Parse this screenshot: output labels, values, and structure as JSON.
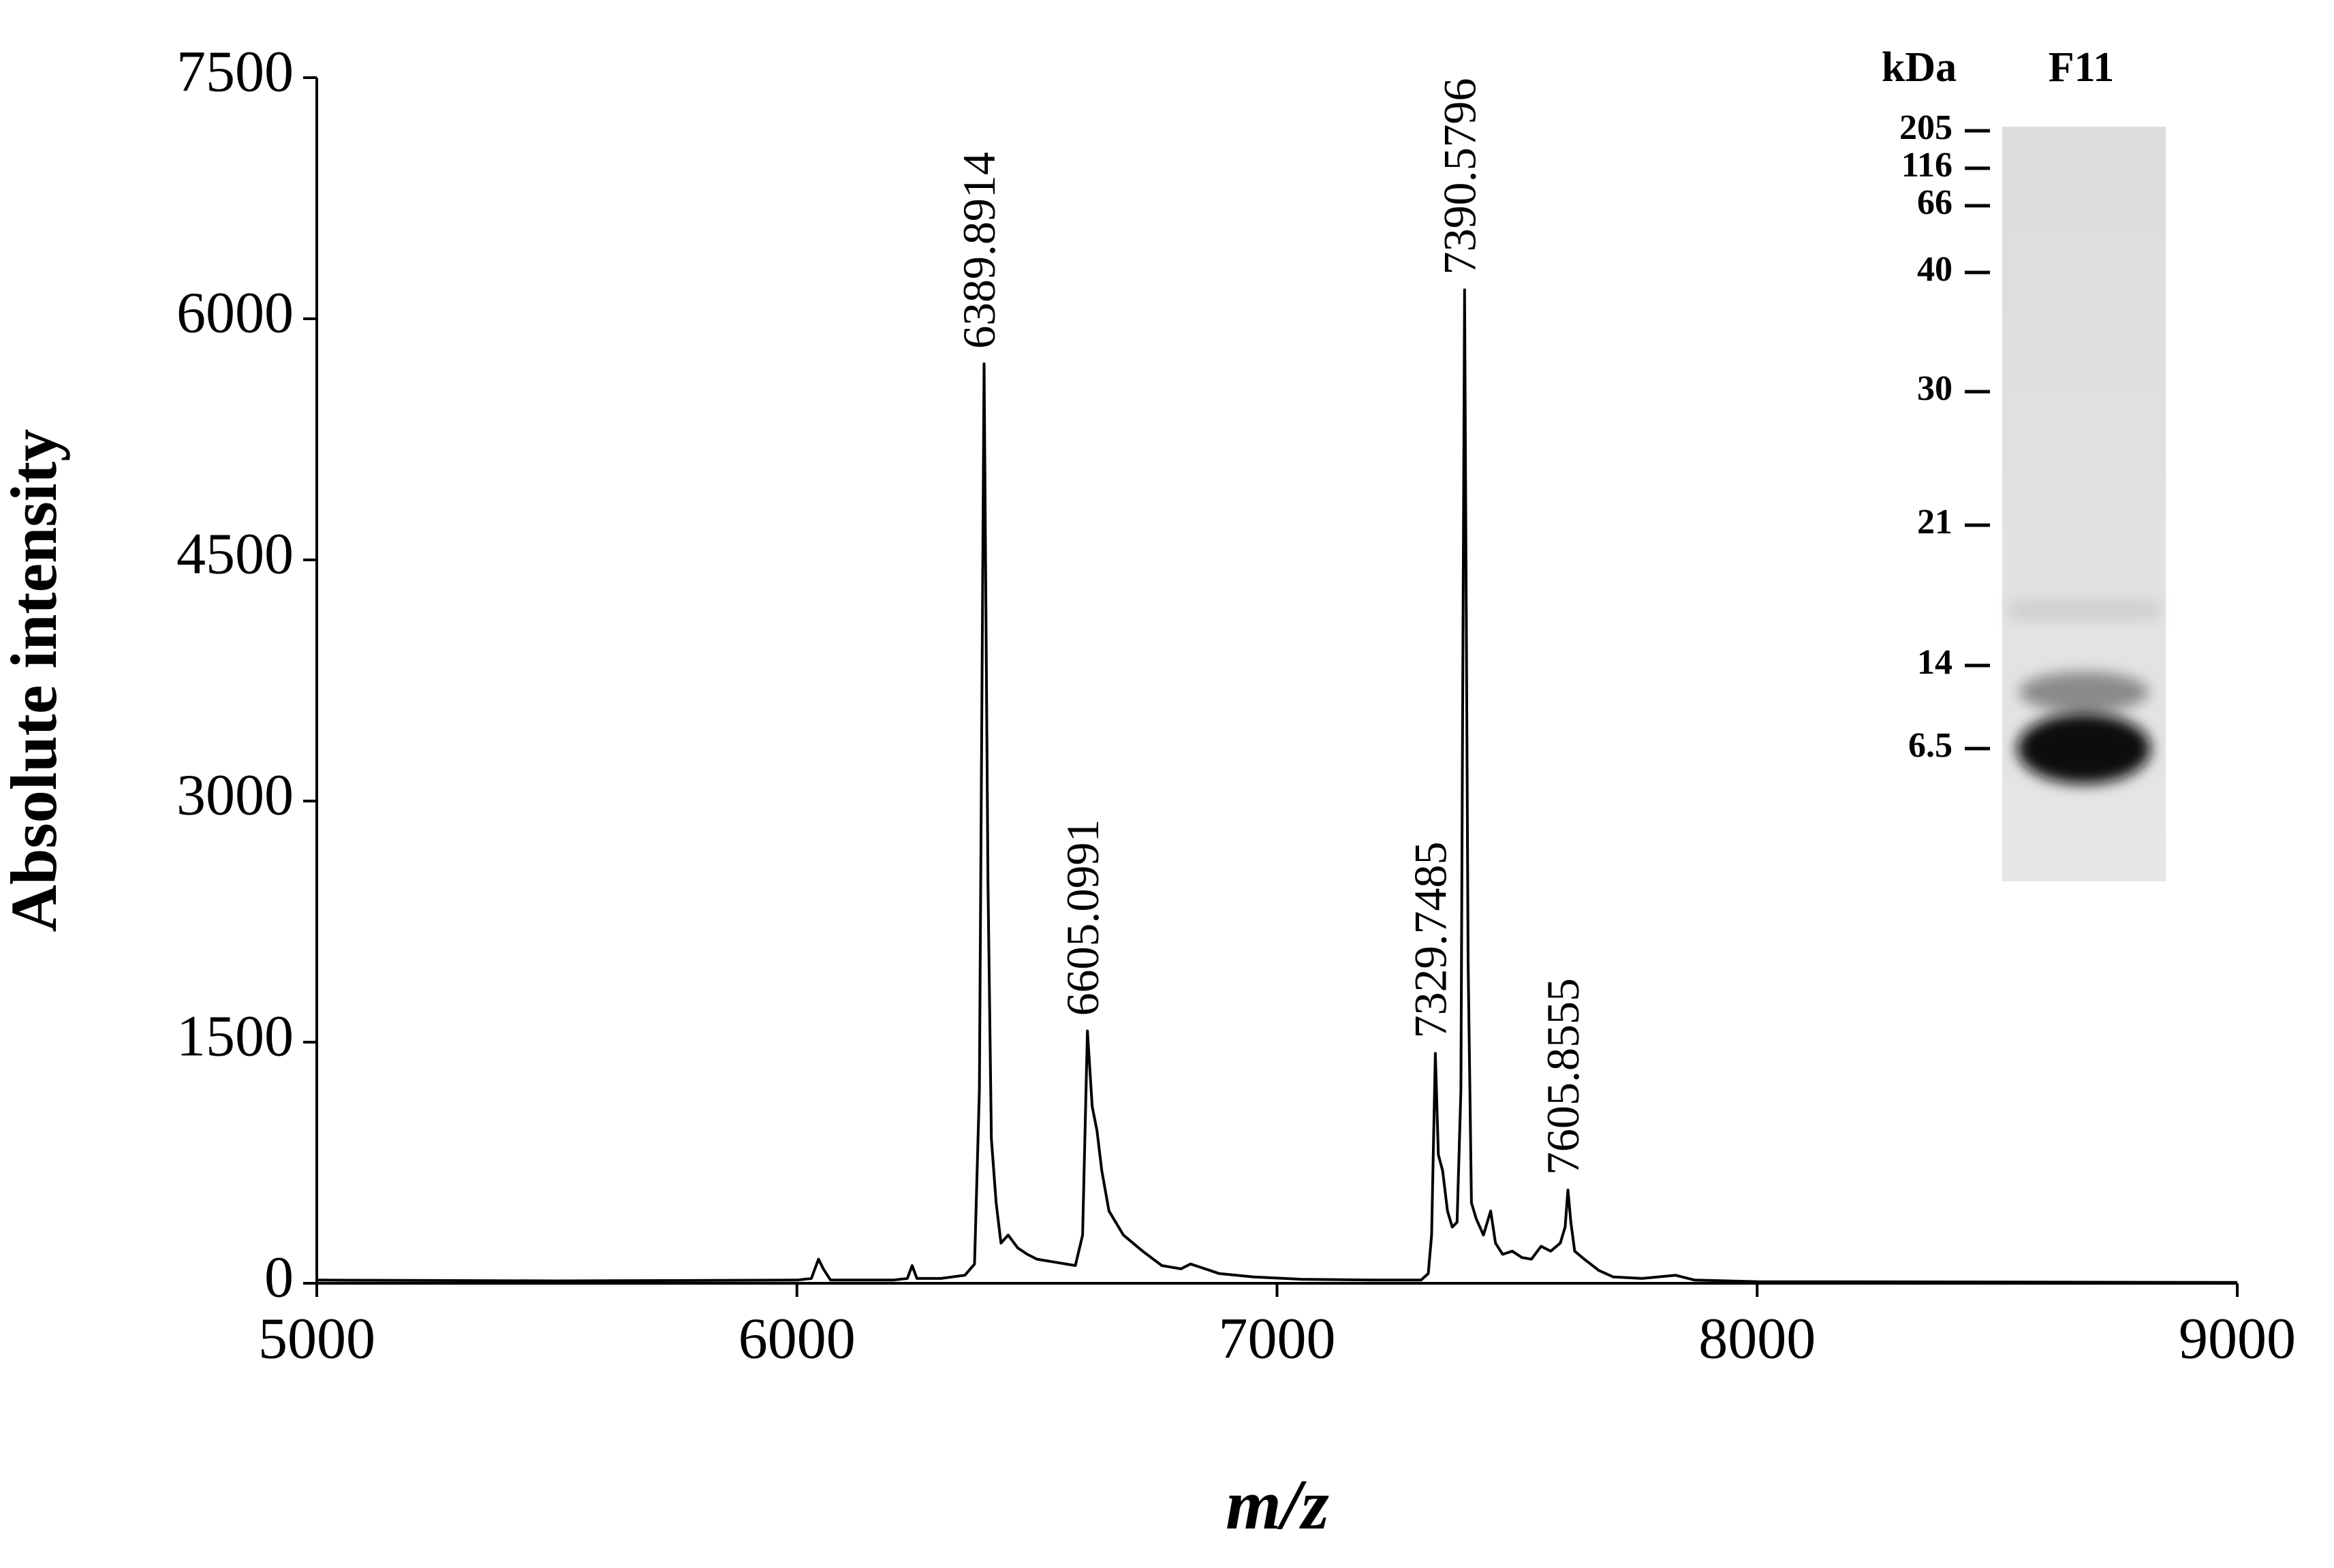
{
  "chart_data": {
    "type": "line",
    "xlabel": "m/z",
    "ylabel": "Absolute intensity",
    "xlim": [
      5000,
      9000
    ],
    "ylim": [
      0,
      7500
    ],
    "xticks": [
      5000,
      6000,
      7000,
      8000,
      9000
    ],
    "yticks": [
      0,
      1500,
      3000,
      4500,
      6000,
      7500
    ],
    "color": "#000000",
    "x": [
      5000,
      5500,
      6000,
      6030,
      6045,
      6055,
      6070,
      6200,
      6230,
      6240,
      6250,
      6300,
      6350,
      6370,
      6380,
      6389.9,
      6398,
      6405,
      6415,
      6425,
      6440,
      6460,
      6480,
      6500,
      6540,
      6580,
      6595,
      6605.1,
      6615,
      6625,
      6635,
      6650,
      6680,
      6720,
      6760,
      6800,
      6820,
      6840,
      6880,
      6950,
      7050,
      7200,
      7300,
      7315,
      7322,
      7329.7,
      7336,
      7345,
      7355,
      7365,
      7375,
      7383,
      7390.6,
      7398,
      7405,
      7415,
      7430,
      7445,
      7455,
      7470,
      7490,
      7510,
      7530,
      7550,
      7570,
      7590,
      7600,
      7605.9,
      7612,
      7620,
      7640,
      7670,
      7700,
      7760,
      7830,
      7870,
      8000,
      8500,
      9000
    ],
    "values": [
      20,
      15,
      20,
      30,
      150,
      90,
      20,
      20,
      30,
      110,
      30,
      30,
      50,
      120,
      1200,
      5720,
      2500,
      900,
      500,
      250,
      300,
      220,
      180,
      150,
      130,
      110,
      300,
      1570,
      1100,
      950,
      700,
      450,
      300,
      200,
      110,
      90,
      120,
      100,
      60,
      40,
      25,
      20,
      20,
      60,
      300,
      1430,
      800,
      700,
      450,
      350,
      380,
      1200,
      6180,
      2000,
      500,
      400,
      300,
      450,
      250,
      180,
      200,
      160,
      150,
      230,
      200,
      250,
      350,
      580,
      380,
      200,
      150,
      80,
      40,
      30,
      50,
      20,
      10,
      8,
      5
    ],
    "annotations": [
      {
        "label": "6389.8914",
        "x": 6389.8914,
        "y": 5720
      },
      {
        "label": "6605.0991",
        "x": 6605.0991,
        "y": 1570
      },
      {
        "label": "7329.7485",
        "x": 7329.7485,
        "y": 1430
      },
      {
        "label": "7390.5796",
        "x": 7390.5796,
        "y": 6180
      },
      {
        "label": "7605.8555",
        "x": 7605.8555,
        "y": 580
      }
    ],
    "inset": {
      "unit": "kDa",
      "lane": "F11",
      "markers": [
        205,
        116,
        66,
        40,
        30,
        21,
        14,
        6.5
      ]
    }
  }
}
